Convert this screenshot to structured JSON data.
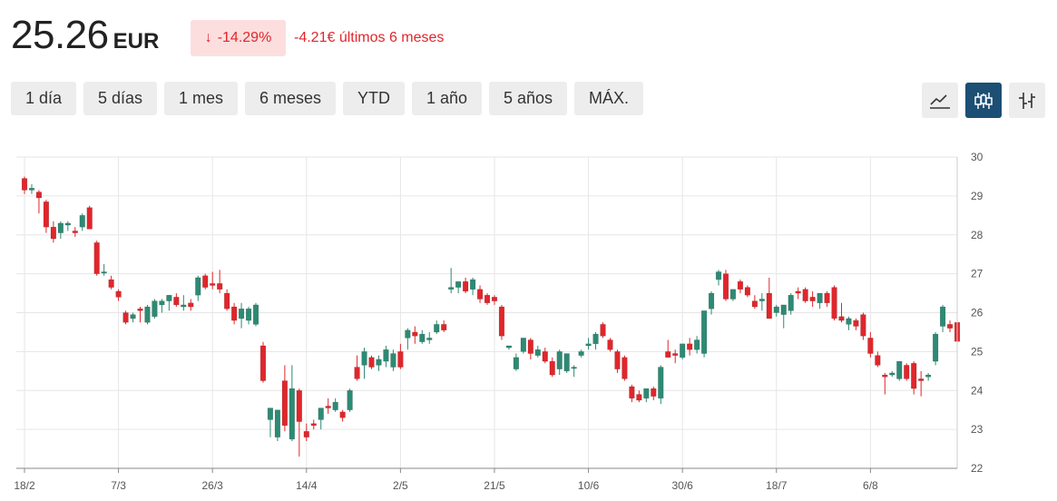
{
  "header": {
    "price": "25.26",
    "unit": "EUR",
    "change_percent": "-14.29%",
    "change_text": "-4.21€ últimos 6 meses",
    "down_color": "#e0262b",
    "up_color": "#2d8a74",
    "accent_color": "#1c4f73"
  },
  "ranges": [
    {
      "label": "1 día",
      "active": false
    },
    {
      "label": "5 días",
      "active": false
    },
    {
      "label": "1 mes",
      "active": false
    },
    {
      "label": "6 meses",
      "active": true
    },
    {
      "label": "YTD",
      "active": false
    },
    {
      "label": "1 año",
      "active": false
    },
    {
      "label": "5 años",
      "active": false
    },
    {
      "label": "MÁX.",
      "active": false
    }
  ],
  "chart_types": [
    {
      "icon": "line-chart-icon",
      "active": false
    },
    {
      "icon": "candlestick-chart-icon",
      "active": true
    },
    {
      "icon": "ohlc-chart-icon",
      "active": false
    }
  ],
  "chart_data": {
    "type": "candlestick",
    "x_tick_labels": [
      "18/2",
      "7/3",
      "26/3",
      "14/4",
      "2/5",
      "21/5",
      "10/6",
      "30/6",
      "18/7",
      "6/8"
    ],
    "x_tick_index": [
      0,
      13,
      26,
      39,
      52,
      65,
      78,
      91,
      104,
      117
    ],
    "y_ticks": [
      22,
      23,
      24,
      25,
      26,
      27,
      28,
      29,
      30
    ],
    "ylim": [
      22,
      30
    ],
    "grid": true,
    "candles": [
      [
        29.45,
        29.5,
        29.05,
        29.15
      ],
      [
        29.15,
        29.3,
        29.05,
        29.2
      ],
      [
        29.1,
        29.15,
        28.55,
        28.95
      ],
      [
        28.85,
        28.9,
        28.05,
        28.2
      ],
      [
        28.2,
        28.35,
        27.8,
        27.9
      ],
      [
        28.05,
        28.35,
        27.9,
        28.3
      ],
      [
        28.25,
        28.35,
        28.1,
        28.3
      ],
      [
        28.1,
        28.2,
        27.95,
        28.05
      ],
      [
        28.2,
        28.55,
        28.1,
        28.5
      ],
      [
        28.7,
        28.75,
        28.15,
        28.15
      ],
      [
        27.8,
        27.85,
        26.95,
        27.0
      ],
      [
        27.05,
        27.25,
        26.95,
        27.05
      ],
      [
        26.85,
        26.95,
        26.6,
        26.65
      ],
      [
        26.55,
        26.6,
        26.3,
        26.4
      ],
      [
        26.0,
        26.05,
        25.7,
        25.75
      ],
      [
        25.85,
        26.0,
        25.75,
        25.95
      ],
      [
        26.1,
        26.15,
        25.75,
        26.05
      ],
      [
        25.75,
        26.2,
        25.7,
        26.15
      ],
      [
        25.9,
        26.35,
        25.85,
        26.3
      ],
      [
        26.2,
        26.35,
        26.0,
        26.3
      ],
      [
        26.3,
        26.45,
        26.05,
        26.45
      ],
      [
        26.4,
        26.5,
        26.15,
        26.2
      ],
      [
        26.15,
        26.45,
        26.05,
        26.2
      ],
      [
        26.25,
        26.35,
        26.05,
        26.15
      ],
      [
        26.45,
        26.95,
        26.3,
        26.9
      ],
      [
        26.95,
        27.0,
        26.6,
        26.65
      ],
      [
        26.75,
        27.05,
        26.6,
        26.7
      ],
      [
        26.75,
        27.1,
        26.5,
        26.6
      ],
      [
        26.5,
        26.6,
        26.05,
        26.1
      ],
      [
        26.15,
        26.25,
        25.7,
        25.8
      ],
      [
        25.85,
        26.25,
        25.6,
        26.1
      ],
      [
        25.8,
        26.15,
        25.7,
        26.1
      ],
      [
        25.7,
        26.25,
        25.65,
        26.2
      ],
      [
        25.15,
        25.25,
        24.2,
        24.25
      ],
      [
        23.25,
        23.55,
        22.8,
        23.55
      ],
      [
        22.8,
        23.5,
        22.7,
        23.5
      ],
      [
        24.25,
        24.65,
        22.95,
        23.1
      ],
      [
        22.75,
        24.65,
        22.7,
        24.05
      ],
      [
        24.0,
        24.05,
        22.3,
        23.2
      ],
      [
        22.95,
        23.15,
        22.7,
        22.8
      ],
      [
        23.15,
        23.25,
        23.0,
        23.1
      ],
      [
        23.25,
        23.55,
        23.0,
        23.55
      ],
      [
        23.6,
        23.8,
        23.4,
        23.55
      ],
      [
        23.5,
        23.8,
        23.45,
        23.7
      ],
      [
        23.45,
        23.5,
        23.2,
        23.3
      ],
      [
        23.5,
        24.05,
        23.45,
        24.0
      ],
      [
        24.6,
        24.9,
        24.25,
        24.3
      ],
      [
        24.65,
        25.1,
        24.3,
        25.0
      ],
      [
        24.85,
        24.9,
        24.55,
        24.6
      ],
      [
        24.65,
        24.9,
        24.5,
        24.8
      ],
      [
        24.75,
        25.15,
        24.6,
        25.05
      ],
      [
        24.6,
        25.05,
        24.5,
        24.95
      ],
      [
        25.0,
        25.2,
        24.55,
        24.6
      ],
      [
        25.35,
        25.6,
        25.05,
        25.55
      ],
      [
        25.5,
        25.65,
        25.2,
        25.4
      ],
      [
        25.25,
        25.55,
        25.2,
        25.45
      ],
      [
        25.3,
        25.5,
        25.2,
        25.35
      ],
      [
        25.5,
        25.8,
        25.45,
        25.7
      ],
      [
        25.7,
        25.8,
        25.5,
        25.55
      ],
      [
        26.6,
        27.15,
        26.5,
        26.65
      ],
      [
        26.65,
        26.75,
        26.5,
        26.8
      ],
      [
        26.8,
        26.9,
        26.5,
        26.55
      ],
      [
        26.6,
        26.9,
        26.45,
        26.85
      ],
      [
        26.6,
        26.7,
        26.25,
        26.35
      ],
      [
        26.45,
        26.5,
        26.2,
        26.25
      ],
      [
        26.4,
        26.45,
        26.2,
        26.3
      ],
      [
        26.15,
        26.2,
        25.3,
        25.4
      ],
      [
        25.1,
        25.15,
        25.05,
        25.15
      ],
      [
        24.55,
        24.95,
        24.5,
        24.85
      ],
      [
        25.0,
        25.35,
        24.95,
        25.35
      ],
      [
        25.3,
        25.35,
        24.8,
        24.95
      ],
      [
        24.9,
        25.15,
        24.85,
        25.05
      ],
      [
        25.0,
        25.1,
        24.7,
        24.75
      ],
      [
        24.75,
        24.85,
        24.35,
        24.4
      ],
      [
        24.55,
        25.05,
        24.4,
        25.0
      ],
      [
        24.5,
        24.95,
        24.45,
        24.95
      ],
      [
        24.6,
        24.65,
        24.35,
        24.6
      ],
      [
        24.9,
        25.05,
        24.85,
        25.0
      ],
      [
        25.15,
        25.35,
        25.05,
        25.2
      ],
      [
        25.2,
        25.5,
        25.05,
        25.45
      ],
      [
        25.7,
        25.75,
        25.35,
        25.4
      ],
      [
        25.3,
        25.35,
        25.0,
        25.05
      ],
      [
        25.0,
        25.05,
        24.45,
        24.55
      ],
      [
        24.85,
        24.9,
        24.25,
        24.3
      ],
      [
        24.1,
        24.15,
        23.7,
        23.8
      ],
      [
        23.9,
        24.0,
        23.7,
        23.75
      ],
      [
        23.8,
        24.05,
        23.7,
        24.05
      ],
      [
        24.05,
        24.1,
        23.75,
        23.85
      ],
      [
        23.8,
        24.65,
        23.65,
        24.6
      ],
      [
        25.0,
        25.3,
        24.85,
        24.85
      ],
      [
        24.95,
        25.05,
        24.7,
        24.9
      ],
      [
        24.85,
        25.2,
        24.8,
        25.2
      ],
      [
        25.2,
        25.35,
        24.9,
        25.05
      ],
      [
        25.05,
        25.4,
        24.95,
        25.3
      ],
      [
        24.95,
        26.05,
        24.85,
        26.05
      ],
      [
        26.1,
        26.55,
        25.95,
        26.5
      ],
      [
        26.85,
        27.1,
        26.7,
        27.05
      ],
      [
        27.0,
        27.1,
        26.3,
        26.35
      ],
      [
        26.35,
        26.6,
        26.3,
        26.6
      ],
      [
        26.8,
        26.85,
        26.5,
        26.6
      ],
      [
        26.65,
        26.7,
        26.4,
        26.45
      ],
      [
        26.3,
        26.45,
        26.1,
        26.15
      ],
      [
        26.3,
        26.5,
        26.05,
        26.35
      ],
      [
        26.5,
        26.9,
        25.85,
        25.85
      ],
      [
        26.0,
        26.2,
        25.9,
        26.15
      ],
      [
        25.95,
        26.2,
        25.6,
        26.2
      ],
      [
        26.05,
        26.5,
        25.95,
        26.45
      ],
      [
        26.55,
        26.65,
        26.35,
        26.5
      ],
      [
        26.6,
        26.65,
        26.25,
        26.3
      ],
      [
        26.4,
        26.55,
        26.15,
        26.3
      ],
      [
        26.25,
        26.5,
        26.1,
        26.5
      ],
      [
        26.5,
        26.55,
        26.15,
        26.25
      ],
      [
        26.65,
        26.7,
        25.8,
        25.85
      ],
      [
        25.9,
        26.25,
        25.75,
        25.8
      ],
      [
        25.7,
        25.9,
        25.55,
        25.85
      ],
      [
        25.8,
        25.85,
        25.55,
        25.65
      ],
      [
        25.95,
        26.0,
        25.3,
        25.4
      ],
      [
        25.35,
        25.5,
        24.85,
        24.95
      ],
      [
        24.9,
        25.0,
        24.6,
        24.65
      ],
      [
        24.4,
        24.45,
        23.9,
        24.35
      ],
      [
        24.4,
        24.5,
        24.35,
        24.45
      ],
      [
        24.3,
        24.75,
        24.25,
        24.75
      ],
      [
        24.65,
        24.7,
        24.25,
        24.3
      ],
      [
        24.7,
        24.75,
        23.9,
        24.05
      ],
      [
        24.3,
        24.5,
        23.85,
        24.25
      ],
      [
        24.35,
        24.45,
        24.25,
        24.4
      ],
      [
        24.75,
        25.5,
        24.65,
        25.45
      ],
      [
        25.65,
        26.2,
        25.5,
        26.15
      ],
      [
        25.7,
        25.8,
        25.5,
        25.6
      ],
      [
        25.75,
        25.8,
        25.15,
        25.26
      ]
    ]
  }
}
